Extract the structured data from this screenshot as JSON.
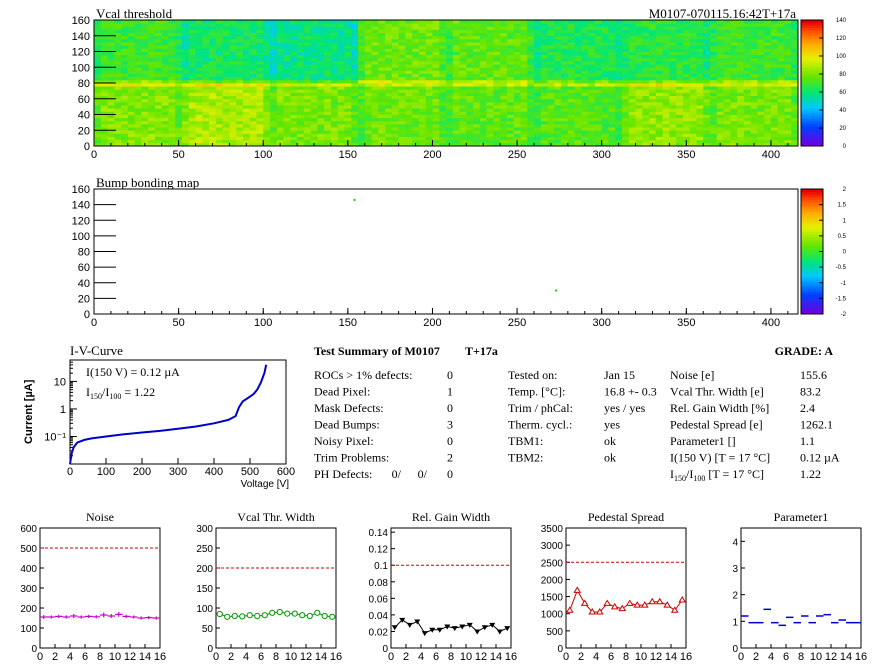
{
  "header": {
    "vcal_title": "Vcal threshold",
    "run_id": "M0107-070115.16:42T+17a",
    "bump_title": "Bump bonding map"
  },
  "colors": {
    "noise": "#cc00cc",
    "vcal": "#009900",
    "gain": "#000000",
    "pedestal": "#cc0000",
    "param1": "#0000cc",
    "threshold": "#cc0000",
    "iv": "#0000cc"
  },
  "summary": {
    "title": "Test Summary of M0107",
    "suffix": "T+17a",
    "grade": "GRADE:  A",
    "left": [
      {
        "label": "ROCs > 1% defects:",
        "value": "0"
      },
      {
        "label": "Dead Pixel:",
        "value": "1"
      },
      {
        "label": "Mask Defects:",
        "value": "0"
      },
      {
        "label": "Dead Bumps:",
        "value": "3"
      },
      {
        "label": "Noisy Pixel:",
        "value": "0"
      },
      {
        "label": "Trim Problems:",
        "value": "2"
      }
    ],
    "ph_label": "PH Defects:",
    "ph_values": [
      "0/",
      "0/",
      "0"
    ],
    "middle": [
      {
        "label": "Tested on:",
        "value": "Jan 15"
      },
      {
        "label": "Temp. [°C]:",
        "value": "16.8 +- 0.3"
      },
      {
        "label": "Trim / phCal:",
        "value": "yes / yes"
      },
      {
        "label": "Therm. cycl.:",
        "value": "yes"
      },
      {
        "label": "TBM1:",
        "value": "ok"
      },
      {
        "label": "TBM2:",
        "value": "ok"
      }
    ],
    "right": [
      {
        "label": "Noise [e]",
        "value": "155.6"
      },
      {
        "label": "Vcal Thr. Width [e]",
        "value": "83.2"
      },
      {
        "label": "Rel. Gain Width [%]",
        "value": "2.4"
      },
      {
        "label": "Pedestal Spread [e]",
        "value": "1262.1"
      },
      {
        "label": "Parameter1 []",
        "value": "1.1"
      },
      {
        "label": "I(150 V) [T = 17 °C]",
        "value": "0.12 µA"
      },
      {
        "label": "I150/I100 [T = 17 °C]",
        "value": "1.22"
      }
    ]
  },
  "chart_data": [
    {
      "type": "heatmap",
      "title": "Vcal threshold",
      "x_ticks": [
        "0",
        "50",
        "100",
        "150",
        "200",
        "250",
        "300",
        "350",
        "400"
      ],
      "y_ticks": [
        "0",
        "20",
        "40",
        "60",
        "80",
        "100",
        "120",
        "140",
        "160"
      ],
      "xlim": [
        0,
        416
      ],
      "ylim": [
        0,
        160
      ],
      "z_ticks": [
        "0",
        "20",
        "40",
        "60",
        "80",
        "100",
        "120",
        "140"
      ],
      "zlim": [
        0,
        140
      ],
      "rocs_top": [
        70,
        62,
        58,
        78,
        76,
        64,
        66,
        70
      ],
      "rocs_bottom": [
        82,
        88,
        80,
        78,
        76,
        74,
        84,
        80
      ]
    },
    {
      "type": "heatmap",
      "title": "Bump bonding map",
      "x_ticks": [
        "0",
        "50",
        "100",
        "150",
        "200",
        "250",
        "300",
        "350",
        "400"
      ],
      "y_ticks": [
        "0",
        "20",
        "40",
        "60",
        "80",
        "100",
        "120",
        "140",
        "160"
      ],
      "xlim": [
        0,
        416
      ],
      "ylim": [
        0,
        160
      ],
      "z_ticks": [
        "2",
        "1.5",
        "1",
        "0.5",
        "0",
        "-0.5",
        "-1",
        "-1.5",
        "-2"
      ],
      "zlim": [
        -2,
        2
      ],
      "points": [
        {
          "x": 154,
          "y": 146
        },
        {
          "x": 273,
          "y": 30
        }
      ]
    },
    {
      "type": "line",
      "title": "I-V-Curve",
      "xlabel": "Voltage [V]",
      "ylabel": "Current [µA]",
      "x_ticks": [
        "0",
        "100",
        "200",
        "300",
        "400",
        "500",
        "600"
      ],
      "y_ticks": [
        "10",
        "1",
        "10⁻¹"
      ],
      "xlim": [
        0,
        600
      ],
      "ylim_log": [
        0.01,
        60
      ],
      "annotation_1": "I(150 V) = 0.12 µA",
      "annotation_2": "I150/I100 =  1.22",
      "x": [
        0,
        5,
        10,
        20,
        40,
        60,
        100,
        150,
        200,
        250,
        300,
        350,
        400,
        440,
        460,
        470,
        480,
        490,
        500,
        510,
        520,
        530,
        540,
        545
      ],
      "y": [
        0.01,
        0.025,
        0.04,
        0.06,
        0.075,
        0.085,
        0.1,
        0.12,
        0.14,
        0.16,
        0.19,
        0.23,
        0.3,
        0.4,
        0.55,
        1.2,
        1.9,
        2.3,
        2.8,
        3.5,
        5,
        9,
        20,
        40
      ]
    },
    {
      "type": "scatter",
      "title": "Noise",
      "x_ticks": [
        "0",
        "2",
        "4",
        "6",
        "8",
        "10",
        "12",
        "14",
        "16"
      ],
      "y_ticks": [
        "0",
        "100",
        "200",
        "300",
        "400",
        "500",
        "600"
      ],
      "xlim": [
        0,
        16
      ],
      "ylim": [
        0,
        600
      ],
      "threshold": 500,
      "x": [
        0,
        1,
        2,
        3,
        4,
        5,
        6,
        7,
        8,
        9,
        10,
        11,
        12,
        13,
        14,
        15
      ],
      "y": [
        155,
        155,
        158,
        155,
        160,
        155,
        158,
        156,
        165,
        160,
        168,
        158,
        155,
        150,
        152,
        150
      ],
      "err": [
        10,
        8,
        8,
        8,
        10,
        8,
        8,
        8,
        12,
        10,
        12,
        8,
        8,
        8,
        8,
        8
      ]
    },
    {
      "type": "line",
      "title": "Vcal Thr. Width",
      "x_ticks": [
        "0",
        "2",
        "4",
        "6",
        "8",
        "10",
        "12",
        "14",
        "16"
      ],
      "y_ticks": [
        "0",
        "50",
        "100",
        "150",
        "200",
        "250",
        "300"
      ],
      "xlim": [
        0,
        16
      ],
      "ylim": [
        0,
        300
      ],
      "threshold": 200,
      "x": [
        0,
        1,
        2,
        3,
        4,
        5,
        6,
        7,
        8,
        9,
        10,
        11,
        12,
        13,
        14,
        15
      ],
      "y": [
        85,
        78,
        80,
        79,
        82,
        80,
        82,
        88,
        90,
        86,
        86,
        82,
        80,
        88,
        80,
        78
      ]
    },
    {
      "type": "line",
      "title": "Rel. Gain Width",
      "x_ticks": [
        "0",
        "2",
        "4",
        "6",
        "8",
        "10",
        "12",
        "14",
        "16"
      ],
      "y_ticks": [
        "0",
        "0.02",
        "0.04",
        "0.06",
        "0.08",
        "0.1",
        "0.12",
        "0.14"
      ],
      "xlim": [
        0,
        16
      ],
      "ylim": [
        0,
        0.145
      ],
      "threshold": 0.1,
      "x": [
        0,
        1,
        2,
        3,
        4,
        5,
        6,
        7,
        8,
        9,
        10,
        11,
        12,
        13,
        14,
        15
      ],
      "y": [
        0.025,
        0.034,
        0.028,
        0.032,
        0.018,
        0.022,
        0.022,
        0.026,
        0.024,
        0.026,
        0.028,
        0.02,
        0.025,
        0.028,
        0.02,
        0.024
      ]
    },
    {
      "type": "line",
      "title": "Pedestal Spread",
      "x_ticks": [
        "0",
        "2",
        "4",
        "6",
        "8",
        "10",
        "12",
        "14",
        "16"
      ],
      "y_ticks": [
        "0",
        "500",
        "1000",
        "1500",
        "2000",
        "2500",
        "3000",
        "3500"
      ],
      "xlim": [
        0,
        16
      ],
      "ylim": [
        0,
        3500
      ],
      "threshold": 2500,
      "x": [
        0,
        1,
        2,
        3,
        4,
        5,
        6,
        7,
        8,
        9,
        10,
        11,
        12,
        13,
        14,
        15
      ],
      "y": [
        1100,
        1680,
        1300,
        1050,
        1050,
        1300,
        1200,
        1150,
        1300,
        1250,
        1250,
        1350,
        1350,
        1250,
        1100,
        1400
      ]
    },
    {
      "type": "scatter",
      "title": "Parameter1",
      "x_ticks": [
        "0",
        "2",
        "4",
        "6",
        "8",
        "10",
        "12",
        "14",
        "16"
      ],
      "y_ticks": [
        "0",
        "1",
        "2",
        "3",
        "4"
      ],
      "xlim": [
        0,
        16
      ],
      "ylim": [
        0,
        4.5
      ],
      "x": [
        0,
        1,
        2,
        3,
        4,
        5,
        6,
        7,
        8,
        9,
        10,
        11,
        12,
        13,
        14,
        15
      ],
      "y": [
        1.2,
        0.95,
        0.95,
        1.45,
        0.95,
        0.85,
        1.15,
        0.95,
        1.2,
        0.95,
        1.2,
        1.25,
        0.95,
        1.05,
        0.95,
        0.95
      ]
    }
  ]
}
